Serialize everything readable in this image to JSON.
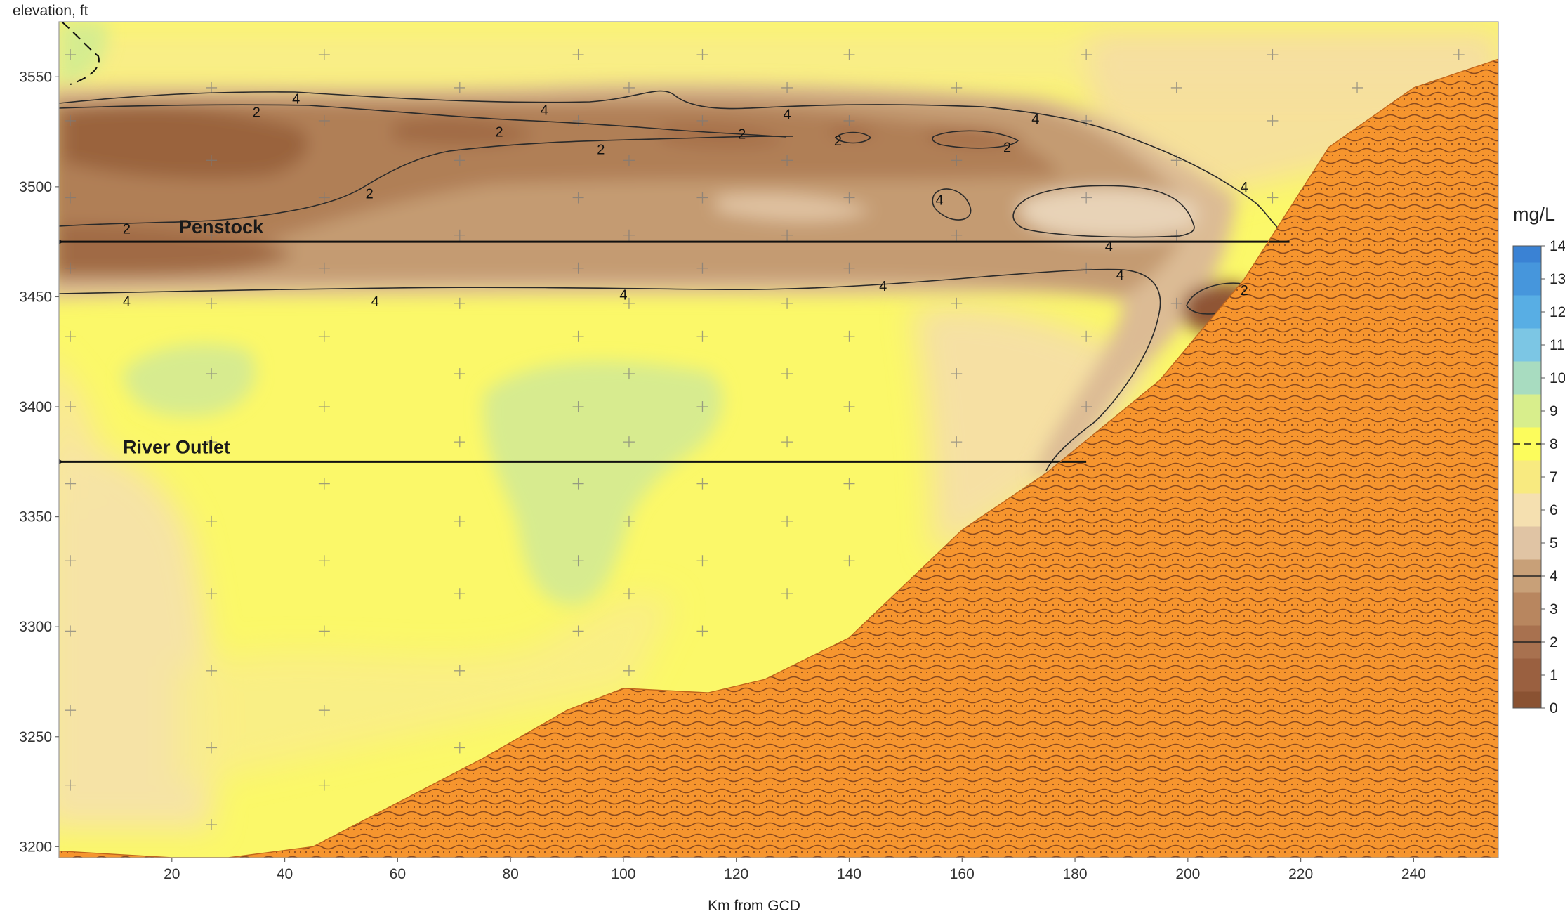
{
  "chart_data": {
    "type": "heatmap",
    "title": "",
    "xlabel": "Km from GCD",
    "ylabel": "elevation, ft",
    "xlim": [
      0,
      255
    ],
    "ylim": [
      3195,
      3575
    ],
    "x_ticks": [
      20,
      40,
      60,
      80,
      100,
      120,
      140,
      160,
      180,
      200,
      220,
      240
    ],
    "y_ticks": [
      3200,
      3250,
      3300,
      3350,
      3400,
      3450,
      3500,
      3550
    ],
    "colorbar": {
      "unit": "mg/L",
      "ticks": [
        0,
        1,
        2,
        3,
        4,
        5,
        6,
        7,
        8,
        9,
        10,
        11,
        12,
        13,
        14
      ],
      "colors": [
        "#8a5232",
        "#9a6040",
        "#a8714f",
        "#b8865f",
        "#c8a078",
        "#e0c4a4",
        "#f5e0b0",
        "#f8ea80",
        "#fcfc5c",
        "#d8ee8c",
        "#a8dcc0",
        "#7cc6e4",
        "#58aee4",
        "#4696dc",
        "#3a82d4"
      ]
    },
    "contour_levels": [
      2,
      4,
      8
    ],
    "bed_profile": {
      "km": [
        0,
        20,
        30,
        45,
        60,
        75,
        90,
        100,
        115,
        125,
        140,
        160,
        175,
        195,
        210,
        225,
        240,
        255
      ],
      "elevation": [
        3198,
        3195,
        3195,
        3200,
        3220,
        3240,
        3262,
        3272,
        3270,
        3276,
        3295,
        3344,
        3370,
        3412,
        3458,
        3518,
        3545,
        3558
      ]
    },
    "outlets": [
      {
        "label": "Penstock",
        "elevation": 3475,
        "from_km": 218,
        "to_km": 0
      },
      {
        "label": "River Outlet",
        "elevation": 3375,
        "from_km": 182,
        "to_km": 0
      }
    ],
    "contour_labels": [
      {
        "text": "4",
        "km": 42,
        "el": 3540
      },
      {
        "text": "2",
        "km": 35,
        "el": 3534
      },
      {
        "text": "4",
        "km": 86,
        "el": 3535
      },
      {
        "text": "2",
        "km": 78,
        "el": 3525
      },
      {
        "text": "2",
        "km": 96,
        "el": 3517
      },
      {
        "text": "2",
        "km": 121,
        "el": 3524
      },
      {
        "text": "4",
        "km": 129,
        "el": 3533
      },
      {
        "text": "2",
        "km": 138,
        "el": 3521
      },
      {
        "text": "2",
        "km": 168,
        "el": 3518
      },
      {
        "text": "4",
        "km": 173,
        "el": 3531
      },
      {
        "text": "2",
        "km": 55,
        "el": 3497
      },
      {
        "text": "2",
        "km": 12,
        "el": 3481
      },
      {
        "text": "4",
        "km": 210,
        "el": 3500
      },
      {
        "text": "4",
        "km": 156,
        "el": 3494
      },
      {
        "text": "4",
        "km": 186,
        "el": 3473
      },
      {
        "text": "4",
        "km": 12,
        "el": 3448
      },
      {
        "text": "4",
        "km": 56,
        "el": 3448
      },
      {
        "text": "4",
        "km": 100,
        "el": 3451
      },
      {
        "text": "4",
        "km": 146,
        "el": 3455
      },
      {
        "text": "4",
        "km": 188,
        "el": 3460
      },
      {
        "text": "2",
        "km": 210,
        "el": 3453
      }
    ],
    "grid": false,
    "legend": "right"
  }
}
